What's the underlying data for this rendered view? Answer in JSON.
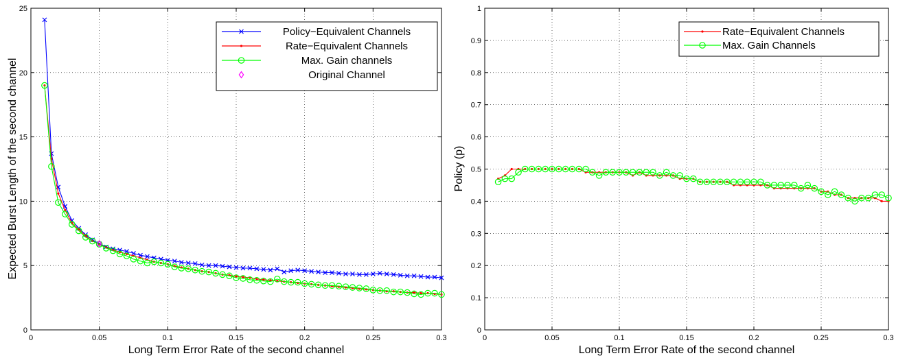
{
  "chart_data": [
    {
      "type": "line",
      "xlabel": "Long Term Error Rate of the second channel",
      "ylabel": "Expected Burst Length of the second channel",
      "xlim": [
        0,
        0.3
      ],
      "ylim": [
        0,
        25
      ],
      "xticks": [
        "0",
        "0.05",
        "0.1",
        "0.15",
        "0.2",
        "0.25",
        "0.3"
      ],
      "yticks": [
        "0",
        "5",
        "10",
        "15",
        "20",
        "25"
      ],
      "grid": true,
      "legend_position": "top-right",
      "x": [
        0.01,
        0.015,
        0.02,
        0.025,
        0.03,
        0.035,
        0.04,
        0.045,
        0.05,
        0.055,
        0.06,
        0.065,
        0.07,
        0.075,
        0.08,
        0.085,
        0.09,
        0.095,
        0.1,
        0.105,
        0.11,
        0.115,
        0.12,
        0.125,
        0.13,
        0.135,
        0.14,
        0.145,
        0.15,
        0.155,
        0.16,
        0.165,
        0.17,
        0.175,
        0.18,
        0.185,
        0.19,
        0.195,
        0.2,
        0.205,
        0.21,
        0.215,
        0.22,
        0.225,
        0.23,
        0.235,
        0.24,
        0.245,
        0.25,
        0.255,
        0.26,
        0.265,
        0.27,
        0.275,
        0.28,
        0.285,
        0.29,
        0.295,
        0.3
      ],
      "series": [
        {
          "name": "Policy−Equivalent Channels",
          "color": "#0000ff",
          "marker": "x",
          "values": [
            24.1,
            13.7,
            11.1,
            9.6,
            8.5,
            7.9,
            7.4,
            7.0,
            6.7,
            6.45,
            6.3,
            6.2,
            6.1,
            5.95,
            5.8,
            5.7,
            5.6,
            5.5,
            5.4,
            5.35,
            5.25,
            5.2,
            5.15,
            5.05,
            5.0,
            5.0,
            4.95,
            4.9,
            4.85,
            4.8,
            4.8,
            4.75,
            4.7,
            4.65,
            4.75,
            4.5,
            4.6,
            4.65,
            4.6,
            4.55,
            4.5,
            4.45,
            4.45,
            4.4,
            4.35,
            4.35,
            4.3,
            4.3,
            4.35,
            4.4,
            4.35,
            4.3,
            4.25,
            4.2,
            4.2,
            4.15,
            4.1,
            4.1,
            4.05
          ]
        },
        {
          "name": "Rate−Equivalent Channels",
          "color": "#ff0000",
          "marker": "dot",
          "values": [
            19.0,
            13.3,
            10.6,
            9.3,
            8.3,
            7.8,
            7.3,
            6.9,
            6.65,
            6.4,
            6.2,
            6.05,
            5.9,
            5.75,
            5.6,
            5.45,
            5.3,
            5.2,
            5.1,
            4.95,
            4.85,
            4.75,
            4.65,
            4.55,
            4.5,
            4.4,
            4.3,
            4.25,
            4.15,
            4.1,
            4.05,
            3.95,
            3.9,
            3.85,
            3.8,
            3.75,
            3.7,
            3.65,
            3.6,
            3.55,
            3.5,
            3.45,
            3.4,
            3.35,
            3.3,
            3.25,
            3.2,
            3.15,
            3.1,
            3.05,
            3.0,
            3.0,
            2.95,
            2.9,
            2.9,
            2.85,
            2.85,
            2.8,
            2.75
          ]
        },
        {
          "name": "Max. Gain channels",
          "color": "#00ff00",
          "marker": "o",
          "values": [
            19.0,
            12.7,
            9.9,
            9.0,
            8.2,
            7.7,
            7.2,
            6.9,
            6.65,
            6.35,
            6.15,
            5.9,
            5.75,
            5.5,
            5.35,
            5.2,
            5.3,
            5.2,
            5.1,
            4.9,
            4.8,
            4.75,
            4.65,
            4.55,
            4.5,
            4.4,
            4.3,
            4.2,
            4.05,
            4.0,
            3.9,
            3.85,
            3.8,
            3.75,
            3.95,
            3.75,
            3.7,
            3.7,
            3.6,
            3.55,
            3.5,
            3.45,
            3.45,
            3.4,
            3.35,
            3.3,
            3.25,
            3.2,
            3.1,
            3.05,
            3.05,
            2.95,
            2.95,
            2.9,
            2.8,
            2.75,
            2.85,
            2.85,
            2.75
          ]
        },
        {
          "name": "Original Channel",
          "color": "#ff00ff",
          "marker": "diamond",
          "x": [
            0.05
          ],
          "values": [
            6.7
          ]
        }
      ]
    },
    {
      "type": "line",
      "xlabel": "Long Term Error Rate of the second channel",
      "ylabel": "Policy (p)",
      "xlim": [
        0,
        0.3
      ],
      "ylim": [
        0,
        1
      ],
      "xticks": [
        "0",
        "0.05",
        "0.1",
        "0.15",
        "0.2",
        "0.25",
        "0.3"
      ],
      "yticks": [
        "0",
        "0.1",
        "0.2",
        "0.3",
        "0.4",
        "0.5",
        "0.6",
        "0.7",
        "0.8",
        "0.9",
        "1"
      ],
      "grid": true,
      "legend_position": "top-right",
      "x": [
        0.01,
        0.015,
        0.02,
        0.025,
        0.03,
        0.035,
        0.04,
        0.045,
        0.05,
        0.055,
        0.06,
        0.065,
        0.07,
        0.075,
        0.08,
        0.085,
        0.09,
        0.095,
        0.1,
        0.105,
        0.11,
        0.115,
        0.12,
        0.125,
        0.13,
        0.135,
        0.14,
        0.145,
        0.15,
        0.155,
        0.16,
        0.165,
        0.17,
        0.175,
        0.18,
        0.185,
        0.19,
        0.195,
        0.2,
        0.205,
        0.21,
        0.215,
        0.22,
        0.225,
        0.23,
        0.235,
        0.24,
        0.245,
        0.25,
        0.255,
        0.26,
        0.265,
        0.27,
        0.275,
        0.28,
        0.285,
        0.29,
        0.295,
        0.3
      ],
      "series": [
        {
          "name": "Rate−Equivalent Channels",
          "color": "#ff0000",
          "marker": "dot",
          "values": [
            0.47,
            0.48,
            0.5,
            0.5,
            0.5,
            0.5,
            0.5,
            0.5,
            0.5,
            0.5,
            0.5,
            0.5,
            0.5,
            0.49,
            0.49,
            0.49,
            0.49,
            0.49,
            0.49,
            0.49,
            0.48,
            0.49,
            0.48,
            0.48,
            0.48,
            0.48,
            0.48,
            0.47,
            0.47,
            0.47,
            0.46,
            0.46,
            0.46,
            0.46,
            0.46,
            0.45,
            0.45,
            0.45,
            0.45,
            0.45,
            0.45,
            0.44,
            0.44,
            0.44,
            0.44,
            0.44,
            0.44,
            0.44,
            0.43,
            0.43,
            0.42,
            0.42,
            0.41,
            0.41,
            0.41,
            0.41,
            0.41,
            0.4,
            0.4
          ]
        },
        {
          "name": "Max. Gain Channels",
          "color": "#00ff00",
          "marker": "o",
          "values": [
            0.46,
            0.47,
            0.47,
            0.49,
            0.5,
            0.5,
            0.5,
            0.5,
            0.5,
            0.5,
            0.5,
            0.5,
            0.5,
            0.5,
            0.49,
            0.48,
            0.49,
            0.49,
            0.49,
            0.49,
            0.49,
            0.49,
            0.49,
            0.49,
            0.48,
            0.49,
            0.48,
            0.48,
            0.47,
            0.47,
            0.46,
            0.46,
            0.46,
            0.46,
            0.46,
            0.46,
            0.46,
            0.46,
            0.46,
            0.46,
            0.45,
            0.45,
            0.45,
            0.45,
            0.45,
            0.44,
            0.45,
            0.44,
            0.43,
            0.42,
            0.43,
            0.42,
            0.41,
            0.4,
            0.41,
            0.41,
            0.42,
            0.42,
            0.41
          ]
        }
      ]
    }
  ]
}
